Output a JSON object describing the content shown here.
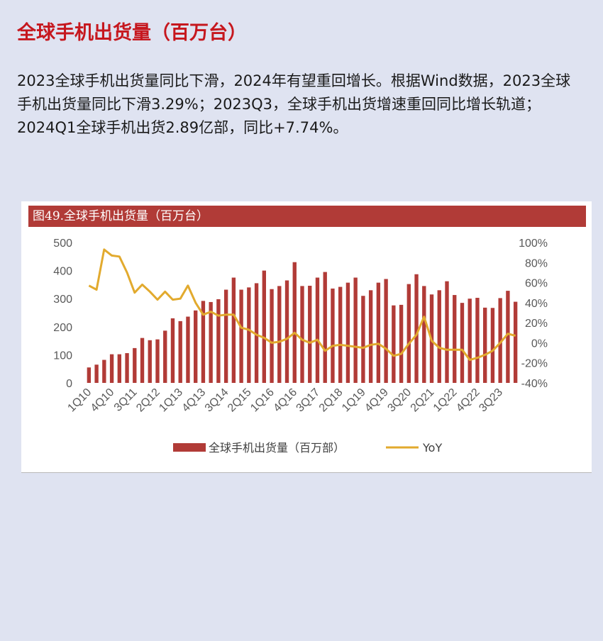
{
  "page": {
    "title": "全球手机出货量（百万台）",
    "paragraph": "2023全球手机出货量同比下滑，2024年有望重回增长。根据Wind数据，2023全球手机出货量同比下滑3.29%；2023Q3，全球手机出货增速重回同比增长轨道；2024Q1全球手机出货2.89亿部，同比+7.74%。"
  },
  "figure": {
    "caption": "图49.全球手机出货量（百万台）"
  },
  "colors": {
    "bar": "#b13b37",
    "line": "#e2aa2e",
    "header": "#b13b37",
    "title": "#c6171e"
  },
  "chart_data": {
    "type": "bar",
    "categories": [
      "1Q10",
      "2Q10",
      "3Q10",
      "4Q10",
      "1Q11",
      "2Q11",
      "3Q11",
      "4Q11",
      "1Q12",
      "2Q12",
      "3Q12",
      "4Q12",
      "1Q13",
      "2Q13",
      "3Q13",
      "4Q13",
      "1Q14",
      "2Q14",
      "3Q14",
      "4Q14",
      "1Q15",
      "2Q15",
      "3Q15",
      "4Q15",
      "1Q16",
      "2Q16",
      "3Q16",
      "4Q16",
      "1Q17",
      "2Q17",
      "3Q17",
      "4Q17",
      "1Q18",
      "2Q18",
      "3Q18",
      "4Q18",
      "1Q19",
      "2Q19",
      "3Q19",
      "4Q19",
      "1Q20",
      "2Q20",
      "3Q20",
      "4Q20",
      "1Q21",
      "2Q21",
      "3Q21",
      "4Q21",
      "1Q22",
      "2Q22",
      "3Q22",
      "4Q22",
      "1Q23",
      "2Q23",
      "3Q23",
      "4Q23",
      "1Q24"
    ],
    "x_tick_labels": [
      "1Q10",
      "4Q10",
      "3Q11",
      "2Q12",
      "1Q13",
      "4Q13",
      "3Q14",
      "2Q15",
      "1Q16",
      "4Q16",
      "3Q17",
      "2Q18",
      "1Q19",
      "4Q19",
      "3Q20",
      "2Q21",
      "1Q22",
      "4Q22",
      "3Q23"
    ],
    "series": [
      {
        "name": "全球手机出货量（百万部）",
        "axis": "left",
        "kind": "bar",
        "values": [
          55,
          65,
          82,
          102,
          102,
          106,
          124,
          160,
          152,
          155,
          186,
          230,
          220,
          236,
          258,
          292,
          288,
          298,
          332,
          375,
          332,
          340,
          355,
          400,
          334,
          345,
          365,
          430,
          345,
          346,
          375,
          395,
          336,
          342,
          357,
          375,
          310,
          330,
          357,
          370,
          276,
          278,
          352,
          387,
          345,
          315,
          330,
          362,
          313,
          285,
          300,
          303,
          268,
          267,
          302,
          328,
          289
        ]
      },
      {
        "name": "YoY",
        "axis": "right",
        "kind": "line",
        "values": [
          57,
          53,
          93,
          87,
          86,
          70,
          50,
          58,
          51,
          43,
          51,
          43,
          44,
          57,
          40,
          28,
          31,
          27,
          28,
          28,
          15,
          13,
          8,
          5,
          0,
          1,
          4,
          10,
          3,
          0,
          3,
          -8,
          -3,
          -2,
          -3,
          -4,
          -5,
          -2,
          -1,
          -6,
          -13,
          -11,
          -1,
          8,
          26,
          2,
          -5,
          -7,
          -7,
          -7,
          -17,
          -15,
          -12,
          -8,
          0,
          9,
          7
        ]
      }
    ],
    "y_left": {
      "ticks": [
        0,
        100,
        200,
        300,
        400,
        500
      ],
      "lim": [
        0,
        500
      ]
    },
    "y_right": {
      "ticks": [
        "100%",
        "80%",
        "60%",
        "40%",
        "20%",
        "0%",
        "-20%",
        "-40%"
      ],
      "lim": [
        -40,
        100
      ]
    },
    "legend_position": "bottom",
    "grid": false
  }
}
